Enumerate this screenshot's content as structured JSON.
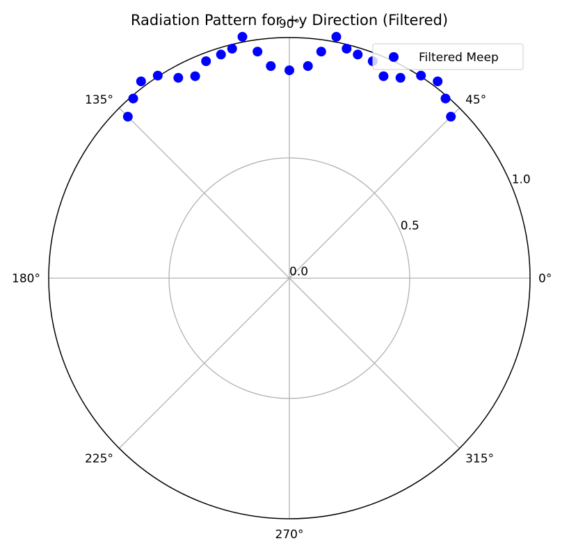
{
  "chart_data": {
    "type": "scatter",
    "projection": "polar",
    "title": "Radiation Pattern for +y Direction (Filtered)",
    "theta_unit": "degrees",
    "theta_ticks": [
      "0°",
      "45°",
      "90°",
      "135°",
      "180°",
      "225°",
      "270°",
      "315°"
    ],
    "theta_tick_values": [
      0,
      45,
      90,
      135,
      180,
      225,
      270,
      315
    ],
    "r_ticks": [
      "0.0",
      "0.5",
      "1.0"
    ],
    "r_tick_values": [
      0.0,
      0.5,
      1.0
    ],
    "r_label_angle": 22.5,
    "rlim": [
      0,
      1.0
    ],
    "grid": true,
    "legend": {
      "placement": "top-right"
    },
    "series": [
      {
        "name": "Filtered Meep",
        "color": "#0000ff",
        "marker": "circle",
        "points": [
          {
            "theta": 45.0,
            "r": 0.949
          },
          {
            "theta": 49.0,
            "r": 0.989
          },
          {
            "theta": 53.0,
            "r": 1.024
          },
          {
            "theta": 57.0,
            "r": 1.004
          },
          {
            "theta": 61.0,
            "r": 0.952
          },
          {
            "theta": 65.0,
            "r": 0.926
          },
          {
            "theta": 69.0,
            "r": 0.966
          },
          {
            "theta": 73.0,
            "r": 0.972
          },
          {
            "theta": 76.0,
            "r": 0.983
          },
          {
            "theta": 79.0,
            "r": 1.022
          },
          {
            "theta": 82.0,
            "r": 0.951
          },
          {
            "theta": 85.0,
            "r": 0.885
          },
          {
            "theta": 90.0,
            "r": 0.864
          },
          {
            "theta": 95.0,
            "r": 0.885
          },
          {
            "theta": 98.0,
            "r": 0.951
          },
          {
            "theta": 101.0,
            "r": 1.022
          },
          {
            "theta": 104.0,
            "r": 0.983
          },
          {
            "theta": 107.0,
            "r": 0.972
          },
          {
            "theta": 111.0,
            "r": 0.966
          },
          {
            "theta": 115.0,
            "r": 0.926
          },
          {
            "theta": 119.0,
            "r": 0.952
          },
          {
            "theta": 123.0,
            "r": 1.004
          },
          {
            "theta": 127.0,
            "r": 1.024
          },
          {
            "theta": 131.0,
            "r": 0.989
          },
          {
            "theta": 135.0,
            "r": 0.949
          }
        ]
      }
    ]
  }
}
